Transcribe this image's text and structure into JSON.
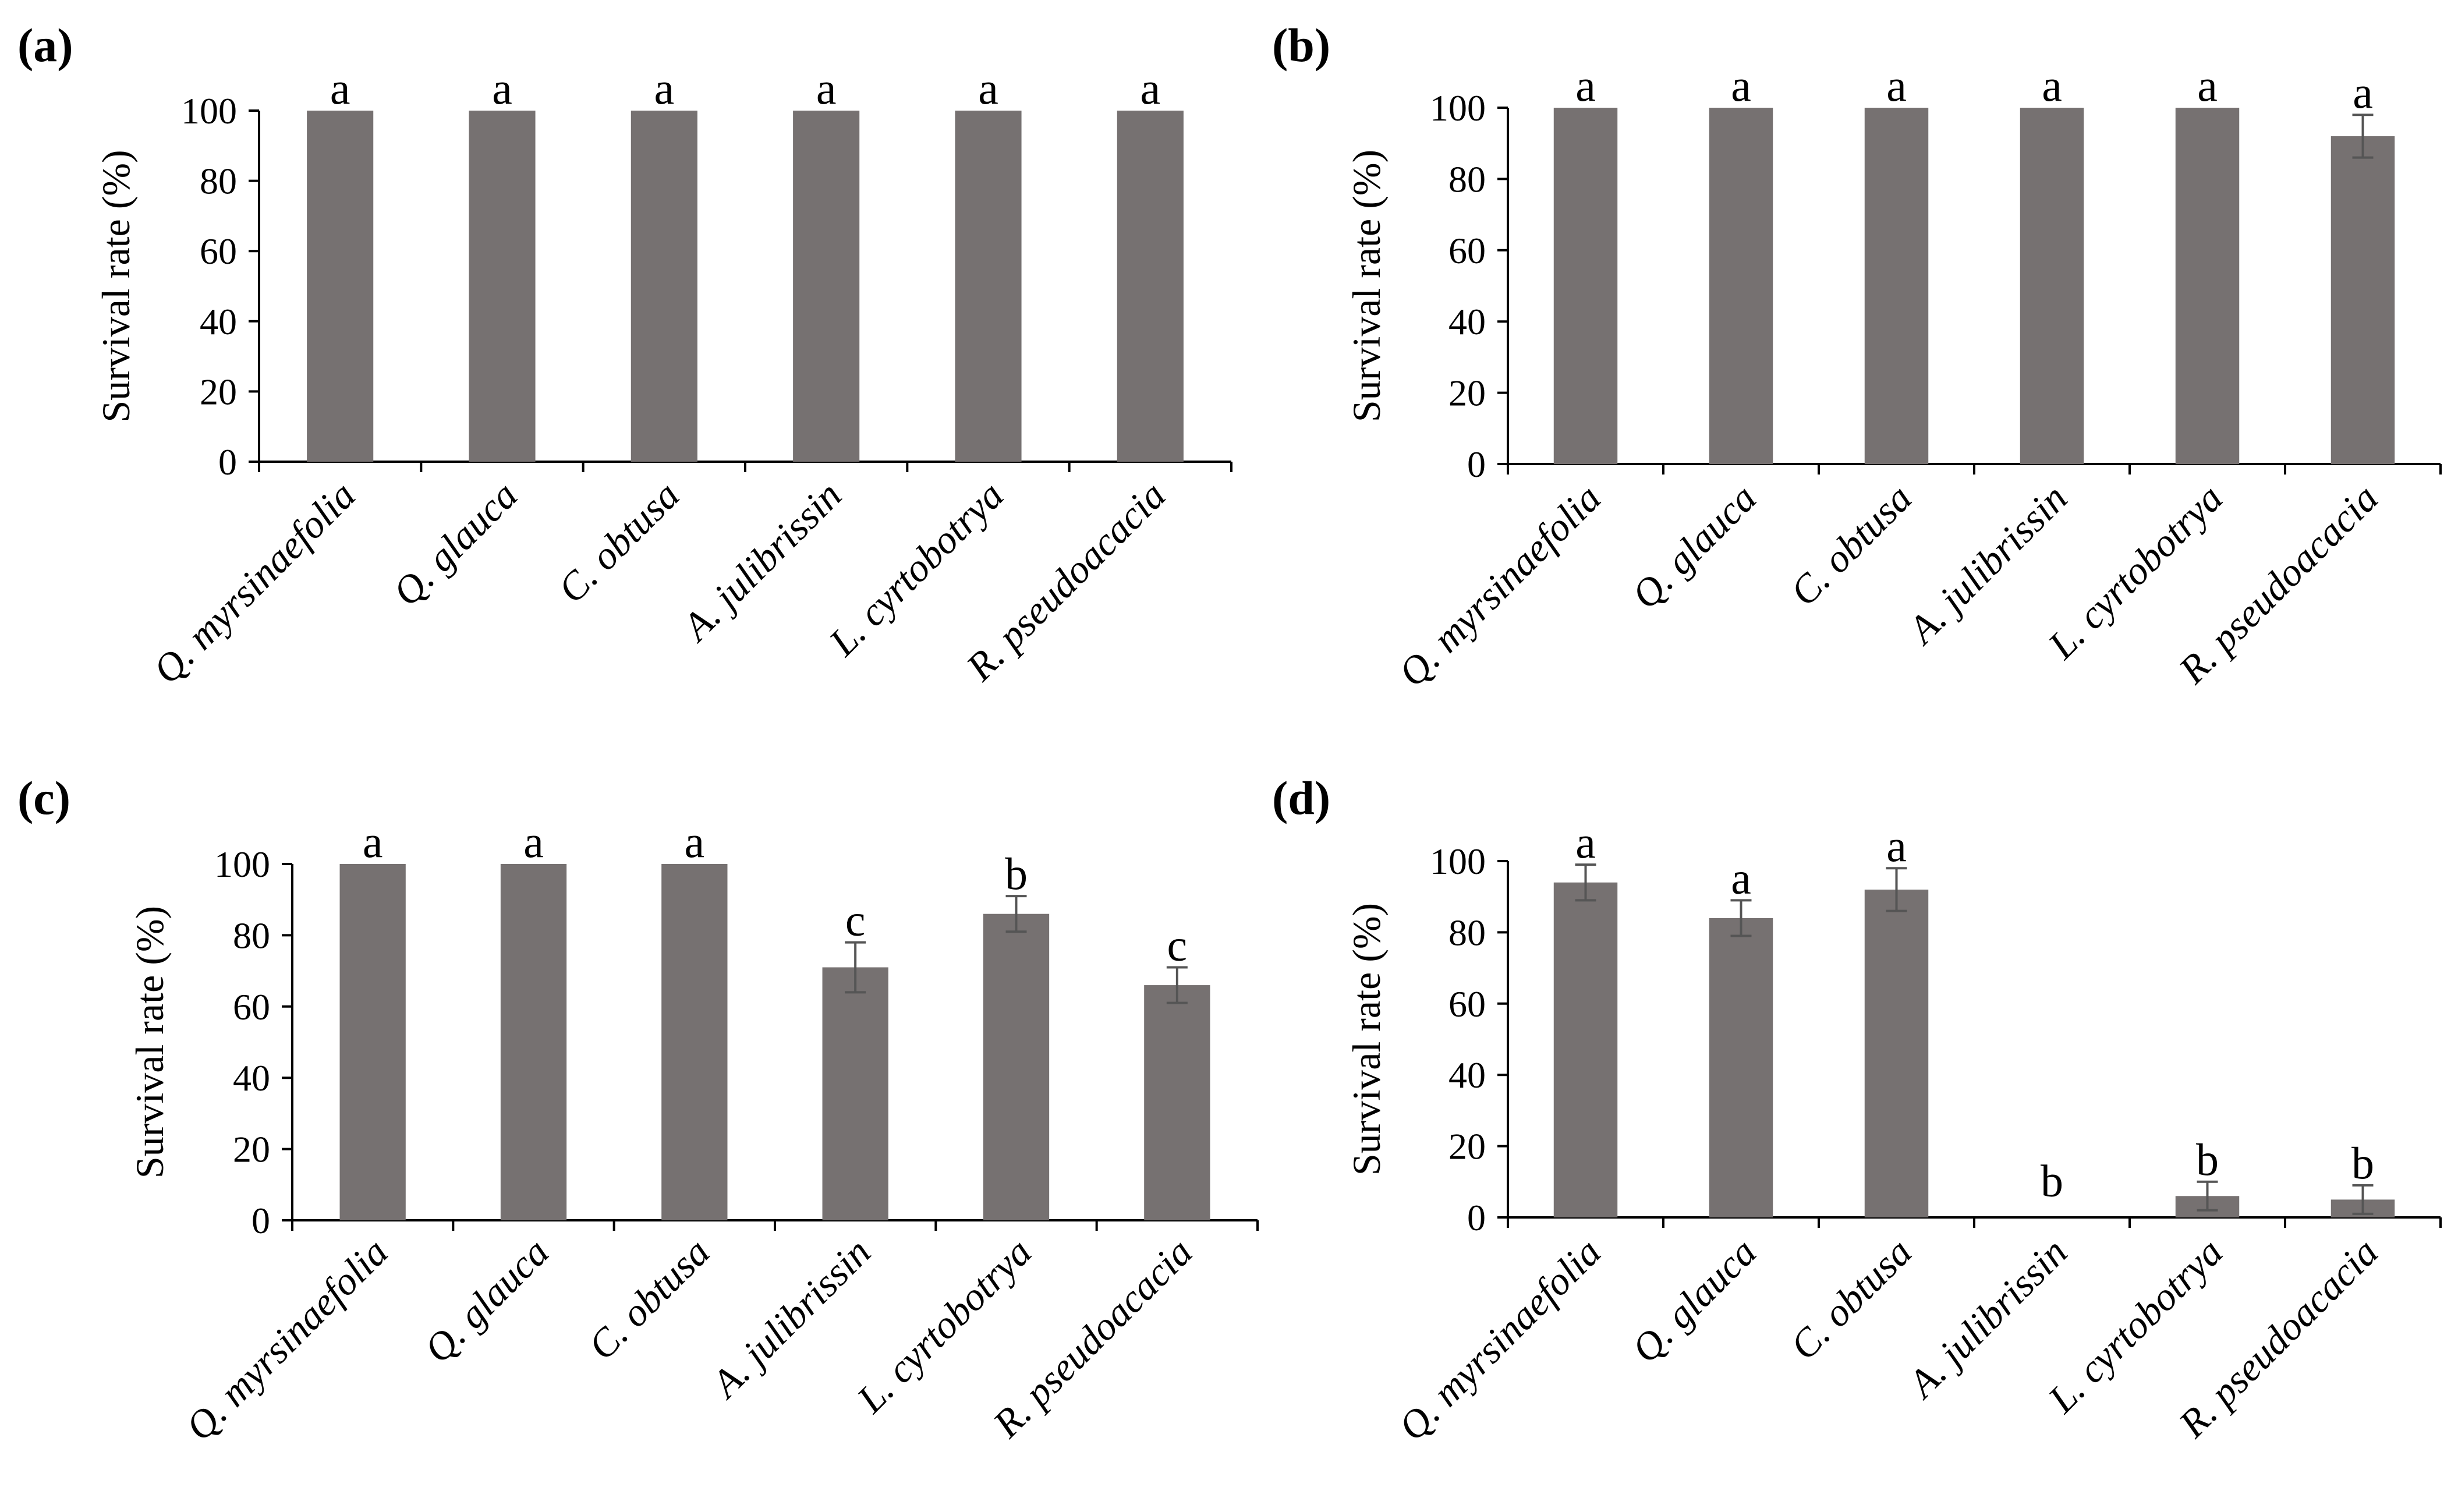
{
  "colors": {
    "bar": "#767171",
    "axis": "#000000",
    "error_bar": "#555555"
  },
  "chart_data": [
    {
      "type": "bar",
      "panel": "(a)",
      "ylabel": "Survival rate (%)",
      "xlabel": "",
      "ylim": [
        0,
        100
      ],
      "yticks": [
        "0",
        "20",
        "40",
        "60",
        "80",
        "100"
      ],
      "categories": [
        "Q. myrsinaefolia",
        "Q. glauca",
        "C. obtusa",
        "A. julibrissin",
        "L. cyrtobotrya",
        "R. pseudoacacia"
      ],
      "values": [
        100,
        100,
        100,
        100,
        100,
        100
      ],
      "errors": [
        0,
        0,
        0,
        0,
        0,
        0
      ],
      "letters": [
        "a",
        "a",
        "a",
        "a",
        "a",
        "a"
      ]
    },
    {
      "type": "bar",
      "panel": "(b)",
      "ylabel": "Survival rate (%)",
      "xlabel": "",
      "ylim": [
        0,
        100
      ],
      "yticks": [
        "0",
        "20",
        "40",
        "60",
        "80",
        "100"
      ],
      "categories": [
        "Q. myrsinaefolia",
        "Q. glauca",
        "C. obtusa",
        "A. julibrissin",
        "L. cyrtobotrya",
        "R. pseudoacacia"
      ],
      "values": [
        100,
        100,
        100,
        100,
        100,
        92
      ],
      "errors": [
        0,
        0,
        0,
        0,
        0,
        6
      ],
      "letters": [
        "a",
        "a",
        "a",
        "a",
        "a",
        "a"
      ]
    },
    {
      "type": "bar",
      "panel": "(c)",
      "ylabel": "Survival rate (%)",
      "xlabel": "",
      "ylim": [
        0,
        100
      ],
      "yticks": [
        "0",
        "20",
        "40",
        "60",
        "80",
        "100"
      ],
      "categories": [
        "Q. myrsinaefolia",
        "Q. glauca",
        "C. obtusa",
        "A. julibrissin",
        "L. cyrtobotrya",
        "R. pseudoacacia"
      ],
      "values": [
        100,
        100,
        100,
        71,
        86,
        66
      ],
      "errors": [
        0,
        0,
        0,
        7,
        5,
        5
      ],
      "letters": [
        "a",
        "a",
        "a",
        "c",
        "b",
        "c"
      ]
    },
    {
      "type": "bar",
      "panel": "(d)",
      "ylabel": "Survival rate (%)",
      "xlabel": "",
      "ylim": [
        0,
        100
      ],
      "yticks": [
        "0",
        "20",
        "40",
        "60",
        "80",
        "100"
      ],
      "categories": [
        "Q. myrsinaefolia",
        "Q. glauca",
        "C. obtusa",
        "A. julibrissin",
        "L. cyrtobotrya",
        "R. pseudoacacia"
      ],
      "values": [
        94,
        84,
        92,
        0,
        6,
        5
      ],
      "errors": [
        5,
        5,
        6,
        0,
        4,
        4
      ],
      "letters": [
        "a",
        "a",
        "a",
        "b",
        "b",
        "b"
      ]
    }
  ]
}
